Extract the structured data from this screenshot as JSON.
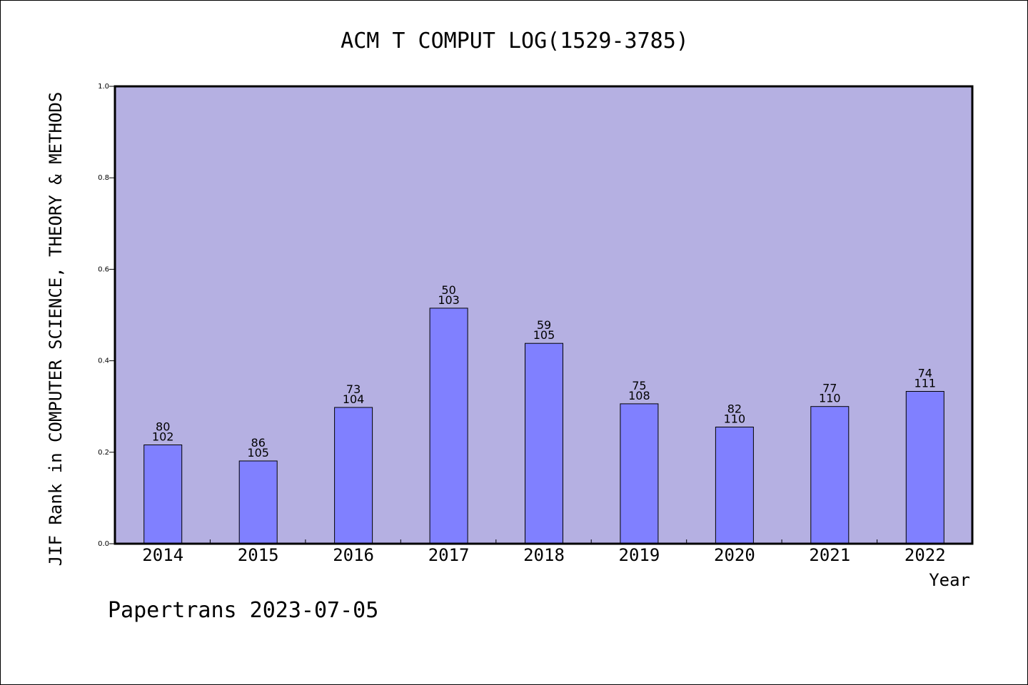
{
  "chart_data": {
    "type": "bar",
    "title": "ACM T COMPUT LOG(1529-3785)",
    "xlabel": "Year",
    "ylabel": "JIF Rank in COMPUTER SCIENCE, THEORY & METHODS",
    "categories": [
      "2014",
      "2015",
      "2016",
      "2017",
      "2018",
      "2019",
      "2020",
      "2021",
      "2022"
    ],
    "values": [
      0.216,
      0.181,
      0.298,
      0.515,
      0.438,
      0.306,
      0.255,
      0.3,
      0.333
    ],
    "ranks": [
      80,
      86,
      73,
      50,
      59,
      75,
      82,
      77,
      74
    ],
    "totals": [
      102,
      105,
      104,
      103,
      105,
      108,
      110,
      110,
      111
    ],
    "ylim": [
      0,
      1.0
    ],
    "yticks": [
      "0.0",
      "0.2",
      "0.4",
      "0.6",
      "0.8",
      "1.0"
    ],
    "grid": false,
    "colors": {
      "plot_bg": "#b5b0e2",
      "bar_fill": "#8080ff",
      "bar_stroke": "#000000"
    }
  },
  "footer": "Papertrans 2023-07-05"
}
